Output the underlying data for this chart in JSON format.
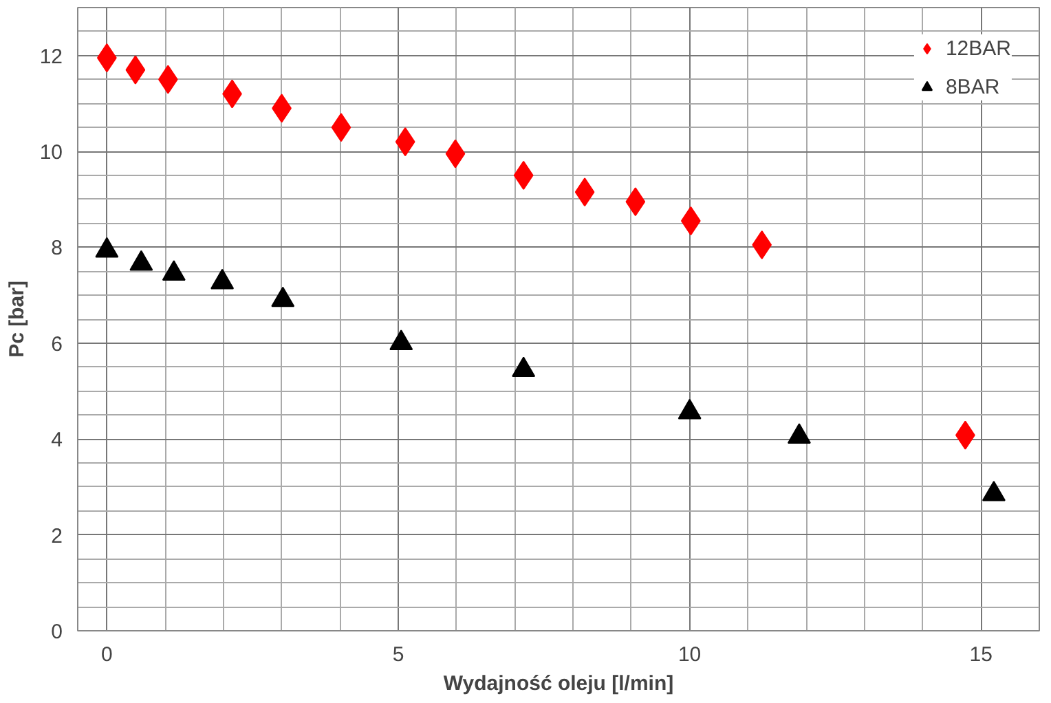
{
  "chart_data": {
    "type": "scatter",
    "xlabel": "Wydajność oleju [l/min]",
    "ylabel": "Pc [bar]",
    "xlim": [
      -0.5,
      16
    ],
    "ylim": [
      0,
      13
    ],
    "xticks": [
      0,
      5,
      10,
      15
    ],
    "yticks": [
      0,
      2,
      4,
      6,
      8,
      10,
      12
    ],
    "grid": true,
    "legend": "top right",
    "series": [
      {
        "name": "12BAR",
        "color": "#ff0000",
        "marker": "diamond",
        "x": [
          0,
          0.49,
          1.05,
          2.15,
          3.0,
          4.02,
          5.12,
          5.98,
          7.15,
          8.2,
          9.07,
          10.02,
          11.24,
          14.73
        ],
        "values": [
          11.95,
          11.7,
          11.5,
          11.2,
          10.9,
          10.5,
          10.2,
          9.95,
          9.5,
          9.15,
          8.95,
          8.55,
          8.05,
          4.08
        ]
      },
      {
        "name": "8BAR",
        "color": "#000000",
        "marker": "triangle",
        "x": [
          0,
          0.59,
          1.15,
          1.98,
          3.02,
          5.05,
          7.15,
          10.0,
          11.88,
          15.22
        ],
        "values": [
          7.93,
          7.66,
          7.45,
          7.27,
          6.9,
          6.0,
          5.44,
          4.56,
          4.05,
          2.85
        ]
      }
    ]
  }
}
